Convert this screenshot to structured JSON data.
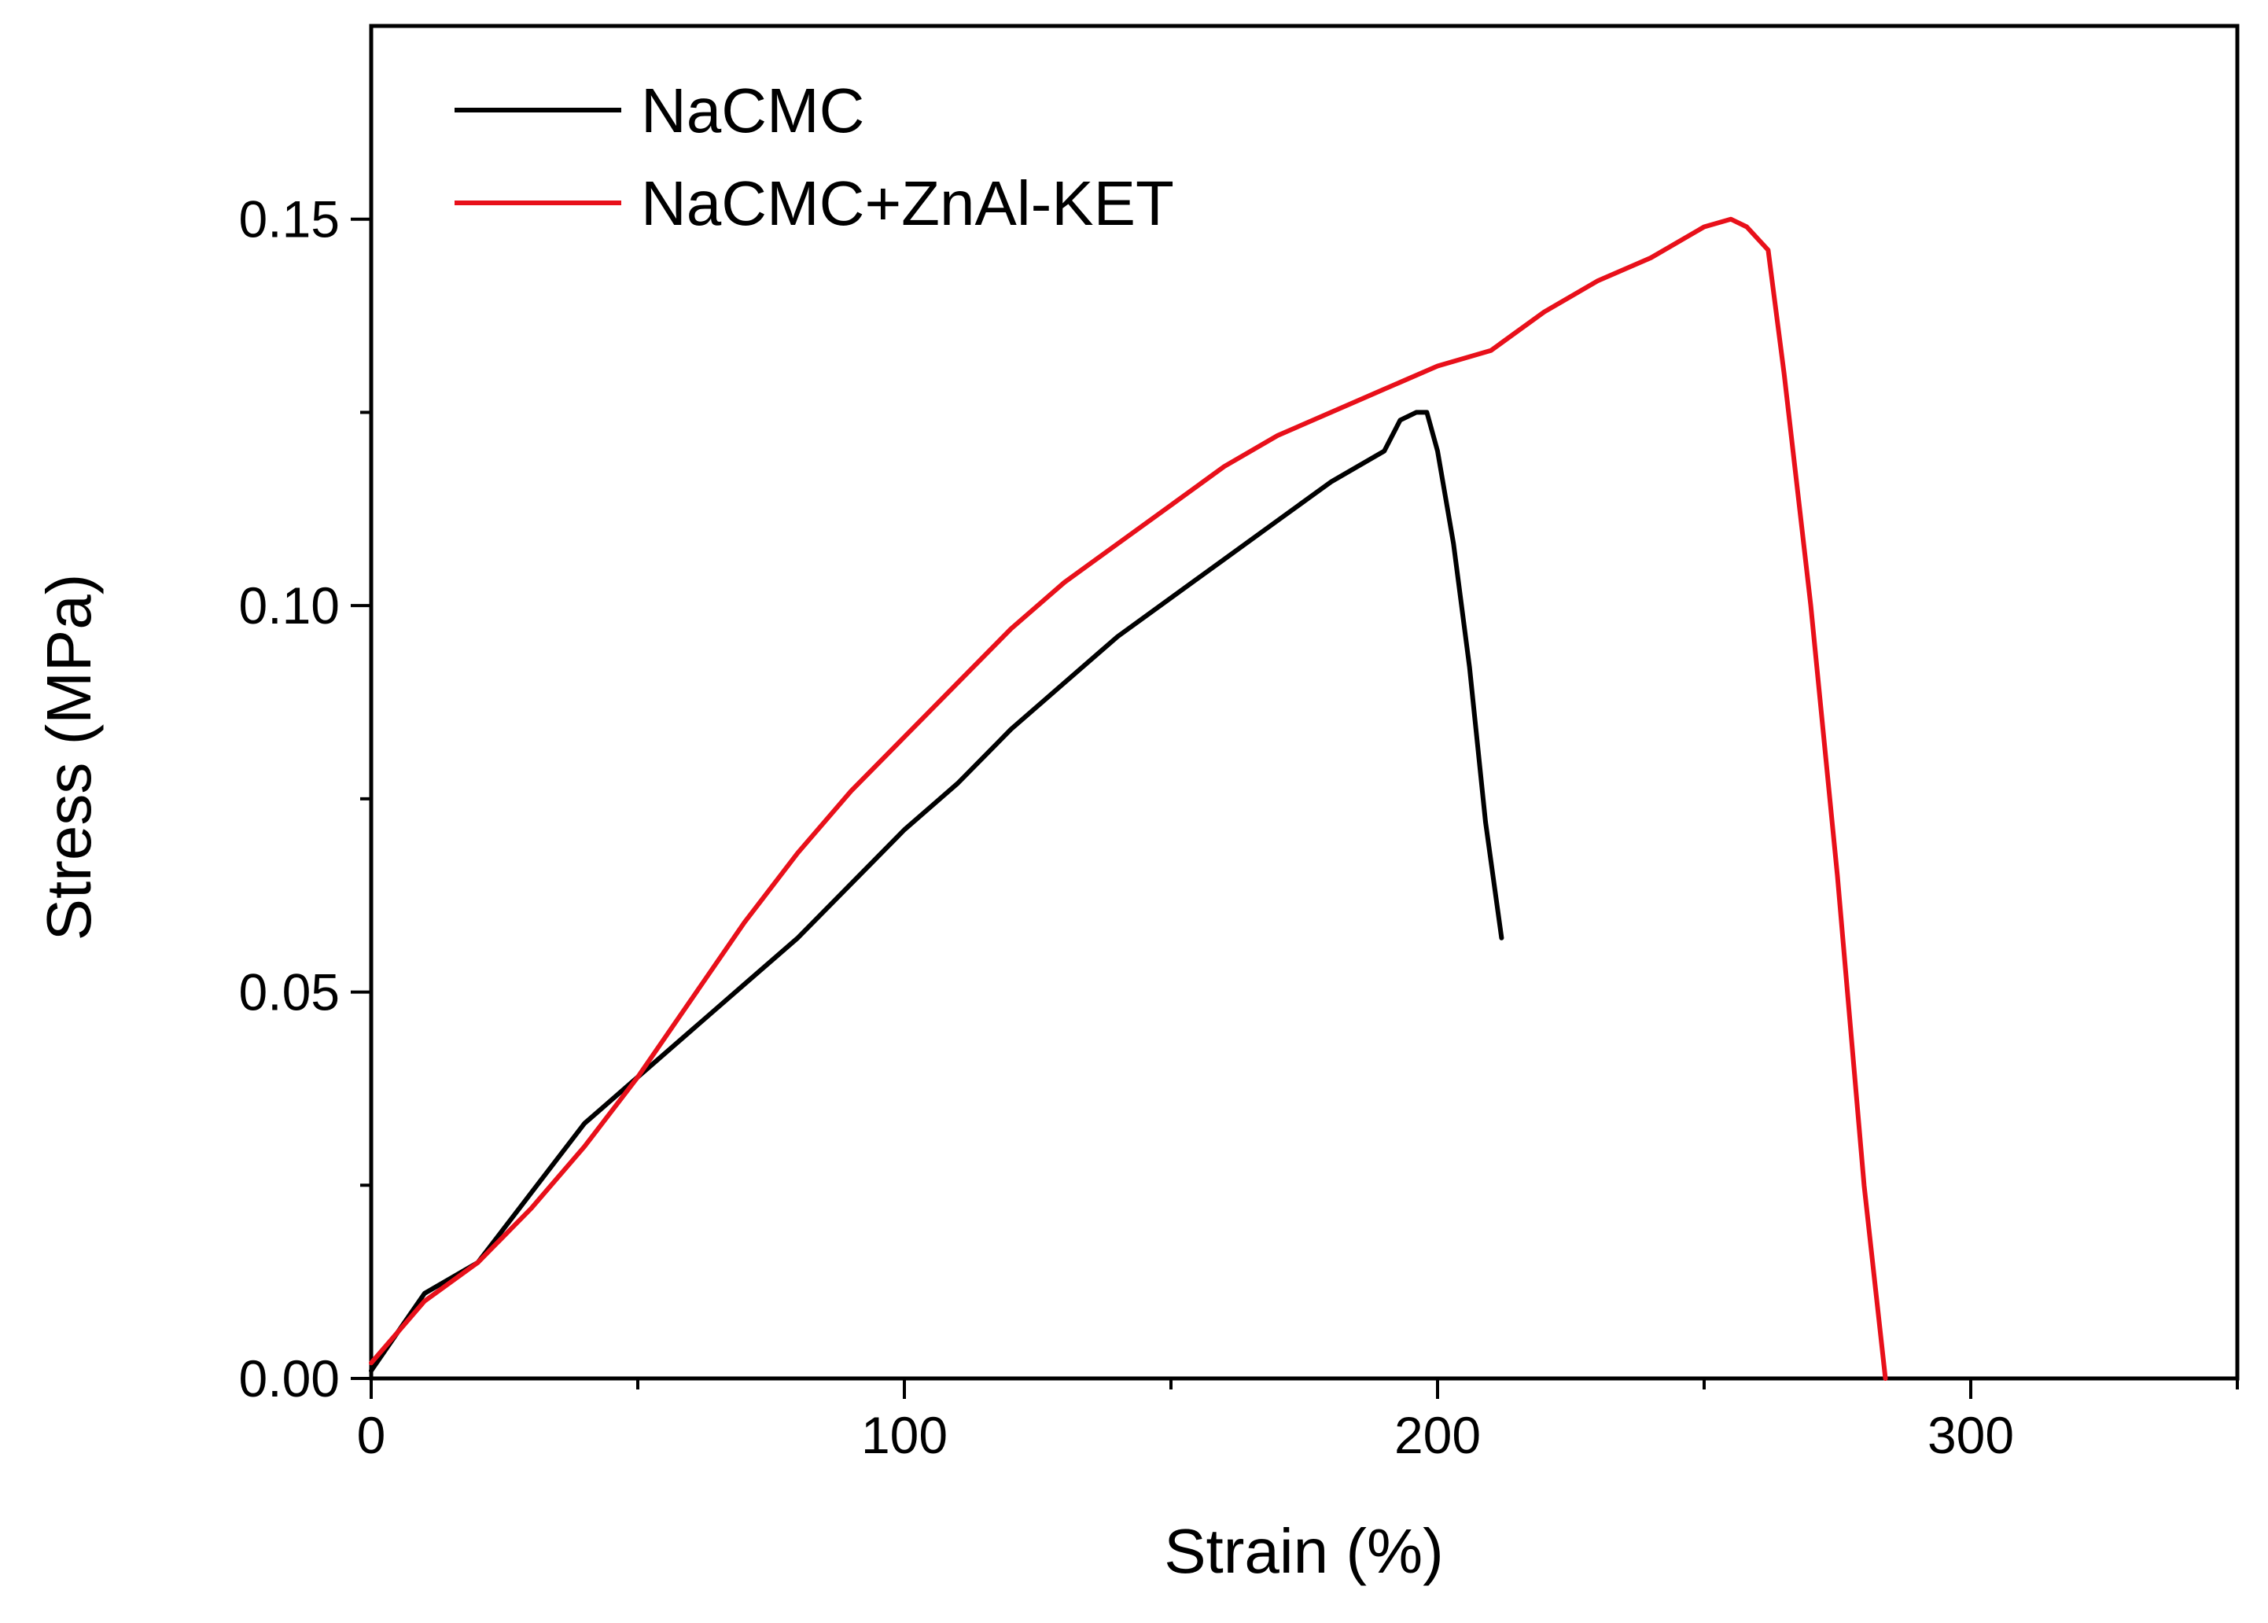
{
  "chart_data": {
    "type": "line",
    "title": "",
    "xlabel": "Strain (%)",
    "ylabel": "Stress (MPa)",
    "xlim": [
      0,
      350
    ],
    "ylim": [
      0,
      0.175
    ],
    "x_ticks": [
      0,
      100,
      200,
      300
    ],
    "x_tick_labels": [
      "0",
      "100",
      "200",
      "300"
    ],
    "x_minor_ticks": [
      50,
      150,
      250,
      350
    ],
    "y_ticks": [
      0,
      0.05,
      0.1,
      0.15
    ],
    "y_tick_labels": [
      "0.00",
      "0.05",
      "0.10",
      "0.15"
    ],
    "y_minor_ticks": [
      0.025,
      0.075,
      0.125
    ],
    "grid": false,
    "legend": "top-left",
    "series": [
      {
        "name": "NaCMC",
        "color": "#000000",
        "x": [
          0,
          5,
          10,
          20,
          30,
          40,
          50,
          60,
          70,
          80,
          90,
          100,
          110,
          120,
          130,
          140,
          150,
          160,
          170,
          180,
          190,
          193,
          196,
          198,
          200,
          203,
          206,
          209,
          212
        ],
        "y": [
          0.001,
          0.006,
          0.011,
          0.015,
          0.024,
          0.033,
          0.039,
          0.045,
          0.051,
          0.057,
          0.064,
          0.071,
          0.077,
          0.084,
          0.09,
          0.096,
          0.101,
          0.106,
          0.111,
          0.116,
          0.12,
          0.124,
          0.125,
          0.125,
          0.12,
          0.108,
          0.092,
          0.072,
          0.057
        ]
      },
      {
        "name": "NaCMC+ZnAl-KET",
        "color": "#e8101a",
        "x": [
          0,
          5,
          10,
          20,
          30,
          40,
          50,
          60,
          70,
          80,
          90,
          100,
          110,
          120,
          130,
          140,
          150,
          160,
          170,
          180,
          190,
          200,
          210,
          220,
          230,
          240,
          250,
          255,
          258,
          262,
          265,
          270,
          275,
          280,
          284
        ],
        "y": [
          0.002,
          0.006,
          0.01,
          0.015,
          0.022,
          0.03,
          0.039,
          0.049,
          0.059,
          0.068,
          0.076,
          0.083,
          0.09,
          0.097,
          0.103,
          0.108,
          0.113,
          0.118,
          0.122,
          0.125,
          0.128,
          0.131,
          0.133,
          0.138,
          0.142,
          0.145,
          0.149,
          0.15,
          0.149,
          0.146,
          0.13,
          0.1,
          0.065,
          0.025,
          0.0
        ]
      }
    ]
  }
}
